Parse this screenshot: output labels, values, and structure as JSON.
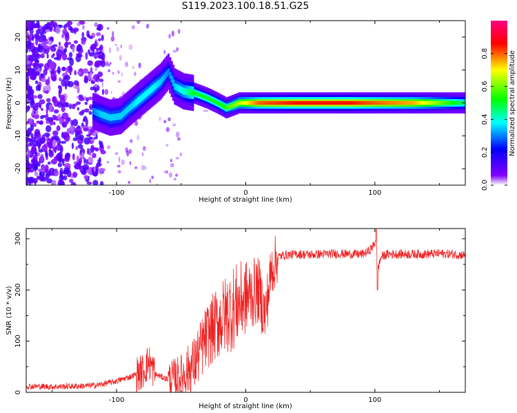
{
  "title": "S119.2023.100.18.51.G25",
  "chart_data": [
    {
      "type": "heatmap",
      "xlabel": "Height of straight line (km)",
      "ylabel": "Frequency (Hz)",
      "xlim": [
        -170,
        170
      ],
      "ylim": [
        -25,
        25
      ],
      "xticks": [
        -100,
        0,
        100
      ],
      "xtick_labels": [
        "-100",
        "0",
        "100"
      ],
      "yticks": [
        -20,
        -10,
        0,
        10,
        20
      ],
      "ytick_labels": [
        "-20",
        "-10",
        "0",
        "10",
        "20"
      ],
      "colorbar": {
        "label": "Normalized spectral amplitude",
        "range": [
          0,
          1
        ],
        "ticks": [
          0.0,
          0.2,
          0.4,
          0.6,
          0.8
        ],
        "tick_labels": [
          "0.0",
          "0.2",
          "0.4",
          "0.6",
          "0.8"
        ],
        "colormap": [
          "#ffffff",
          "#8000ff",
          "#0000ff",
          "#00ffff",
          "#00ff00",
          "#ffff00",
          "#ff0000",
          "#ff0080"
        ]
      },
      "ridge": [
        {
          "x": -118,
          "f": -2.5,
          "a": 0.3
        },
        {
          "x": -112,
          "f": -3.5,
          "a": 0.35
        },
        {
          "x": -105,
          "f": -4.5,
          "a": 0.35
        },
        {
          "x": -97,
          "f": -4.0,
          "a": 0.35
        },
        {
          "x": -90,
          "f": -1.5,
          "a": 0.35
        },
        {
          "x": -84,
          "f": 0.5,
          "a": 0.38
        },
        {
          "x": -78,
          "f": 2.5,
          "a": 0.38
        },
        {
          "x": -72,
          "f": 4.5,
          "a": 0.38
        },
        {
          "x": -66,
          "f": 6.5,
          "a": 0.35
        },
        {
          "x": -60,
          "f": 9.5,
          "a": 0.3
        },
        {
          "x": -55,
          "f": 5.0,
          "a": 0.35
        },
        {
          "x": -48,
          "f": 3.5,
          "a": 0.4
        },
        {
          "x": -40,
          "f": 3.0,
          "a": 0.5
        },
        {
          "x": -30,
          "f": 1.5,
          "a": 0.5
        },
        {
          "x": -22,
          "f": 0.0,
          "a": 0.5
        },
        {
          "x": -15,
          "f": -1.5,
          "a": 0.55
        },
        {
          "x": -5,
          "f": 0.0,
          "a": 0.65
        },
        {
          "x": 10,
          "f": 0.0,
          "a": 0.8
        },
        {
          "x": 40,
          "f": 0.0,
          "a": 0.85
        },
        {
          "x": 80,
          "f": 0.0,
          "a": 0.85
        },
        {
          "x": 100,
          "f": 0.0,
          "a": 0.8
        },
        {
          "x": 130,
          "f": 0.0,
          "a": 0.75
        },
        {
          "x": 170,
          "f": 0.0,
          "a": 0.45
        }
      ]
    },
    {
      "type": "line",
      "xlabel": "Height of straight line (km)",
      "ylabel": "SNR (10 * v/v)",
      "xlim": [
        -170,
        170
      ],
      "ylim": [
        0,
        320
      ],
      "xticks": [
        -100,
        0,
        100
      ],
      "xtick_labels": [
        "-100",
        "0",
        "100"
      ],
      "yticks": [
        0,
        100,
        200,
        300
      ],
      "ytick_labels": [
        "0",
        "100",
        "200",
        "300"
      ],
      "color": "#ee2222",
      "series": [
        {
          "x": [
            -170,
            -150,
            -130,
            -115,
            -100,
            -90,
            -80,
            -75,
            -70,
            -60,
            -50,
            -40,
            -30,
            -20,
            -10,
            0,
            10,
            15,
            20,
            25,
            30,
            40,
            50,
            60,
            70,
            80,
            90,
            95,
            100,
            101,
            102,
            105,
            110,
            120,
            130,
            140,
            150,
            160,
            170
          ],
          "values": [
            12,
            11,
            12,
            14,
            22,
            30,
            40,
            60,
            35,
            25,
            30,
            55,
            110,
            140,
            165,
            185,
            200,
            150,
            240,
            265,
            268,
            270,
            269,
            270,
            271,
            270,
            270,
            275,
            290,
            305,
            240,
            265,
            270,
            270,
            270,
            270,
            271,
            270,
            268
          ]
        }
      ]
    }
  ]
}
